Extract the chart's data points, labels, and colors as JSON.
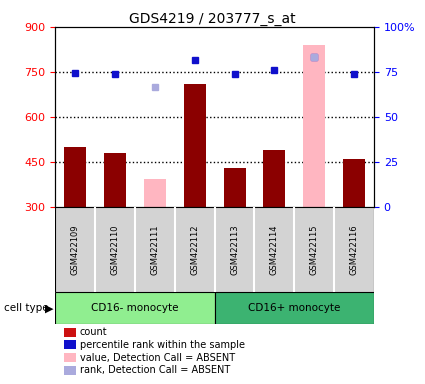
{
  "title": "GDS4219 / 203777_s_at",
  "samples": [
    "GSM422109",
    "GSM422110",
    "GSM422111",
    "GSM422112",
    "GSM422113",
    "GSM422114",
    "GSM422115",
    "GSM422116"
  ],
  "bar_values": [
    500,
    480,
    null,
    710,
    430,
    490,
    null,
    460
  ],
  "bar_values_absent": [
    null,
    null,
    395,
    null,
    null,
    null,
    840,
    null
  ],
  "percentile_values": [
    748,
    742,
    null,
    790,
    742,
    755,
    800,
    745
  ],
  "percentile_absent": [
    null,
    null,
    700,
    null,
    null,
    null,
    800,
    null
  ],
  "bar_bottom": 300,
  "ylim": [
    300,
    900
  ],
  "ylim2": [
    0,
    100
  ],
  "yticks": [
    300,
    450,
    600,
    750,
    900
  ],
  "yticks2": [
    0,
    25,
    50,
    75,
    100
  ],
  "ytick_labels2": [
    "0",
    "25",
    "50",
    "75",
    "100%"
  ],
  "dotted_lines": [
    450,
    600,
    750
  ],
  "bar_color": "#8B0000",
  "bar_color_absent": "#FFB6C1",
  "percentile_color": "#1010CC",
  "percentile_color_absent": "#AAAADD",
  "group1_label": "CD16- monocyte",
  "group2_label": "CD16+ monocyte",
  "cell_type_label": "cell type",
  "legend_items": [
    {
      "label": "count",
      "color": "#CC1111"
    },
    {
      "label": "percentile rank within the sample",
      "color": "#1010CC"
    },
    {
      "label": "value, Detection Call = ABSENT",
      "color": "#FFB6C1"
    },
    {
      "label": "rank, Detection Call = ABSENT",
      "color": "#AAAADD"
    }
  ],
  "bar_width": 0.55,
  "header_bg": "#D3D3D3",
  "group1_bg": "#90EE90",
  "group2_bg": "#3CB371"
}
